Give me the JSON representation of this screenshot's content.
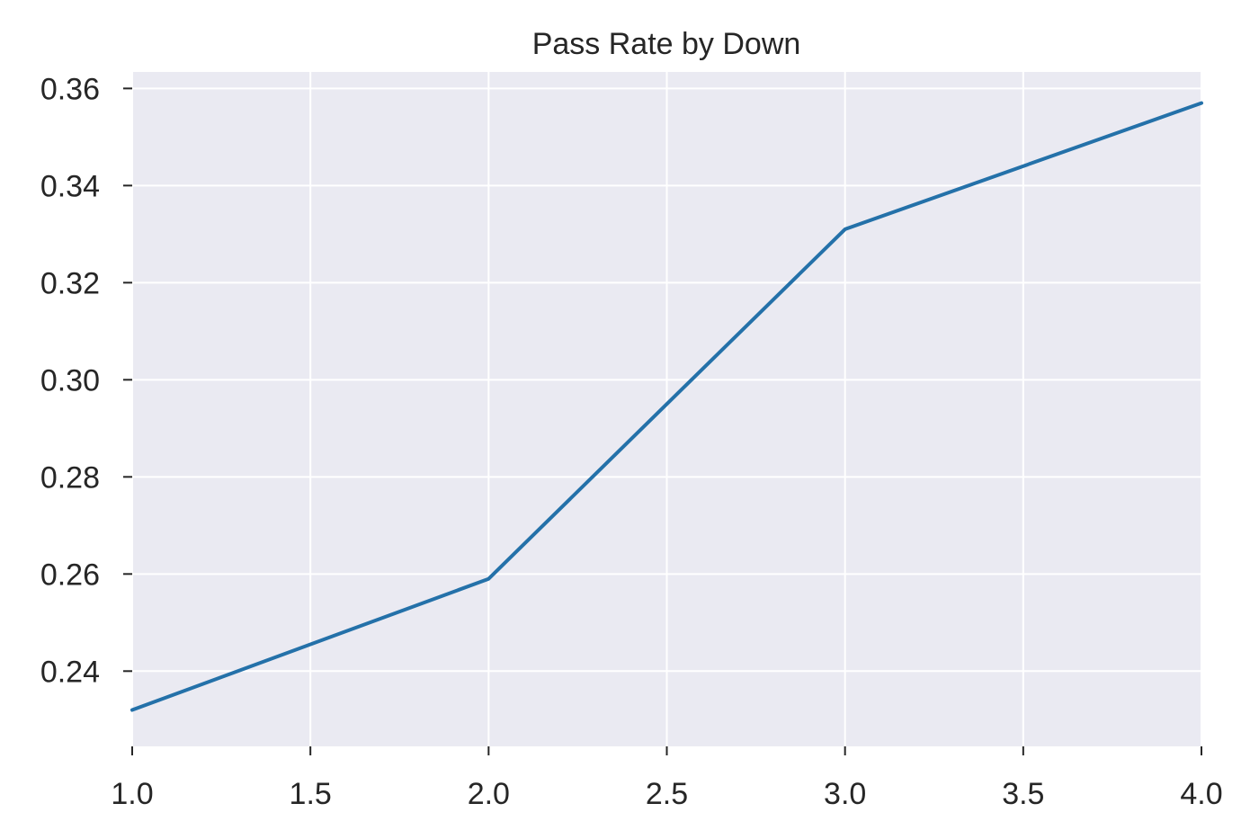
{
  "chart_data": {
    "type": "line",
    "title": "Pass Rate by Down",
    "xlabel": "",
    "ylabel": "",
    "x": [
      1.0,
      2.0,
      3.0,
      4.0
    ],
    "series": [
      {
        "values": [
          0.232,
          0.259,
          0.331,
          0.357
        ],
        "color": "#2471a9"
      }
    ],
    "xlim": [
      1.0,
      4.0
    ],
    "ylim": [
      0.2245,
      0.3634
    ],
    "xticks": [
      1.0,
      1.5,
      2.0,
      2.5,
      3.0,
      3.5,
      4.0
    ],
    "xtick_labels": [
      "1.0",
      "1.5",
      "2.0",
      "2.5",
      "3.0",
      "3.5",
      "4.0"
    ],
    "yticks": [
      0.24,
      0.26,
      0.28,
      0.3,
      0.32,
      0.34,
      0.36
    ],
    "ytick_labels": [
      "0.24",
      "0.26",
      "0.28",
      "0.30",
      "0.32",
      "0.34",
      "0.36"
    ],
    "grid": true,
    "legend": "none",
    "colors": {
      "plot_background": "#eaeaf2",
      "grid": "#ffffff",
      "text": "#262626"
    }
  }
}
